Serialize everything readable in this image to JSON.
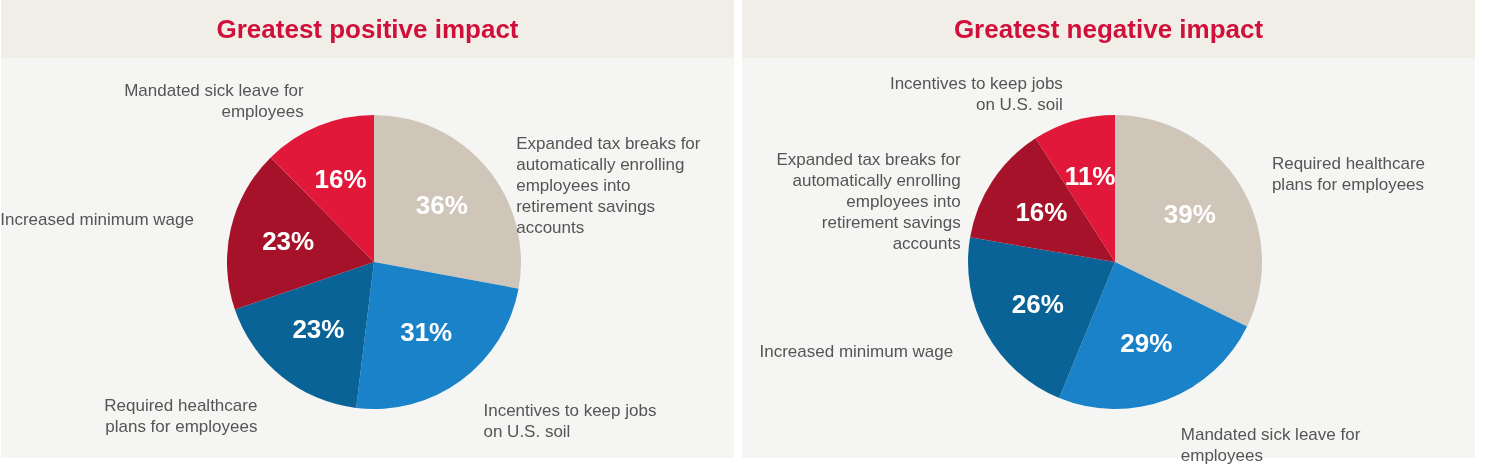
{
  "chart_data": [
    {
      "type": "pie",
      "title": "Greatest positive impact",
      "categories": [
        "Expanded tax breaks for automatically enrolling employees into retirement savings accounts",
        "Incentives to keep jobs on U.S. soil",
        "Required healthcare plans for employees",
        "Increased minimum wage",
        "Mandated sick leave for employees"
      ],
      "values": [
        36,
        31,
        23,
        23,
        16
      ],
      "value_labels": [
        "36%",
        "31%",
        "23%",
        "23%",
        "16%"
      ],
      "colors": [
        "#cfc6b9",
        "#1a82c8",
        "#0a6396",
        "#a61229",
        "#e2183a"
      ],
      "legend": false
    },
    {
      "type": "pie",
      "title": "Greatest negative impact",
      "categories": [
        "Required healthcare plans for employees",
        "Mandated sick leave for employees",
        "Increased minimum wage",
        "Expanded tax breaks for automatically enrolling employees into retirement savings accounts",
        "Incentives to keep jobs on U.S. soil"
      ],
      "values": [
        39,
        29,
        26,
        16,
        11
      ],
      "value_labels": [
        "39%",
        "29%",
        "26%",
        "16%",
        "11%"
      ],
      "colors": [
        "#cfc6b9",
        "#1a82c8",
        "#0a6396",
        "#a61229",
        "#e2183a"
      ],
      "legend": false
    }
  ]
}
